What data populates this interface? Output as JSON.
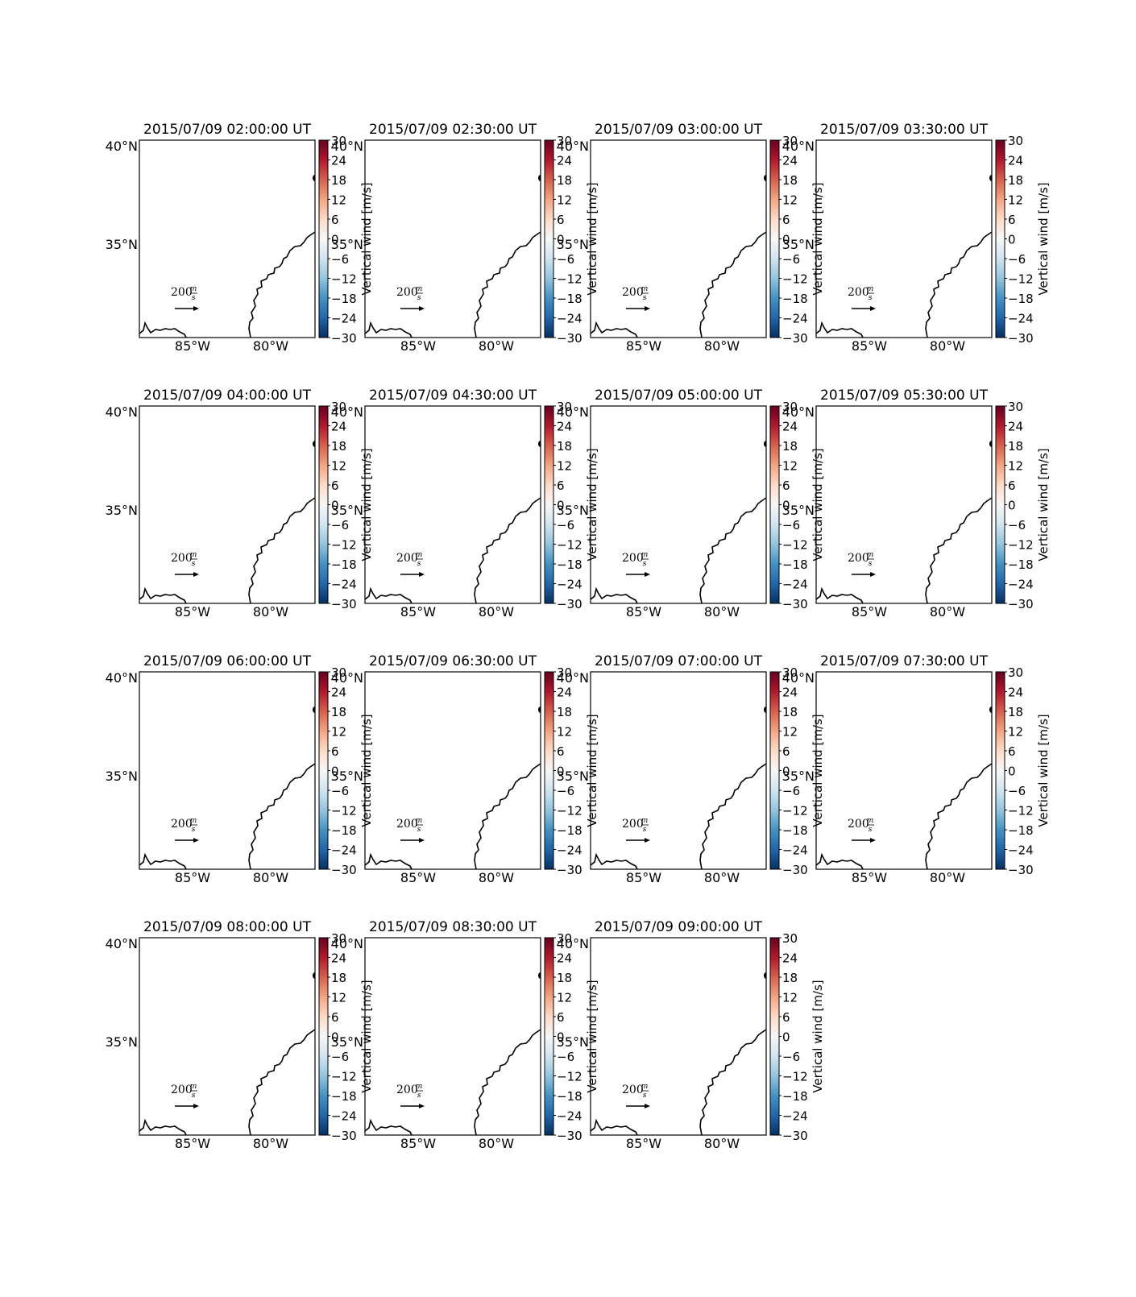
{
  "chart_data": [
    {
      "type": "map",
      "title": "2015/07/09 02:00:00 UT",
      "colorbar_label": "Vertical wind [m/s]",
      "quiver_key": "200",
      "quiver_key_unit": {
        "num": "m",
        "den": "s"
      }
    },
    {
      "type": "map",
      "title": "2015/07/09 02:30:00 UT",
      "colorbar_label": "Vertical wind [m/s]",
      "quiver_key": "200",
      "quiver_key_unit": {
        "num": "m",
        "den": "s"
      }
    },
    {
      "type": "map",
      "title": "2015/07/09 03:00:00 UT",
      "colorbar_label": "Vertical wind [m/s]",
      "quiver_key": "200",
      "quiver_key_unit": {
        "num": "m",
        "den": "s"
      }
    },
    {
      "type": "map",
      "title": "2015/07/09 03:30:00 UT",
      "colorbar_label": "Vertical wind [m/s]",
      "quiver_key": "200",
      "quiver_key_unit": {
        "num": "m",
        "den": "s"
      }
    },
    {
      "type": "map",
      "title": "2015/07/09 04:00:00 UT",
      "colorbar_label": "Vertical wind [m/s]",
      "quiver_key": "200",
      "quiver_key_unit": {
        "num": "m",
        "den": "s"
      }
    },
    {
      "type": "map",
      "title": "2015/07/09 04:30:00 UT",
      "colorbar_label": "Vertical wind [m/s]",
      "quiver_key": "200",
      "quiver_key_unit": {
        "num": "m",
        "den": "s"
      }
    },
    {
      "type": "map",
      "title": "2015/07/09 05:00:00 UT",
      "colorbar_label": "Vertical wind [m/s]",
      "quiver_key": "200",
      "quiver_key_unit": {
        "num": "m",
        "den": "s"
      }
    },
    {
      "type": "map",
      "title": "2015/07/09 05:30:00 UT",
      "colorbar_label": "Vertical wind [m/s]",
      "quiver_key": "200",
      "quiver_key_unit": {
        "num": "m",
        "den": "s"
      }
    },
    {
      "type": "map",
      "title": "2015/07/09 06:00:00 UT",
      "colorbar_label": "Vertical wind [m/s]",
      "quiver_key": "200",
      "quiver_key_unit": {
        "num": "m",
        "den": "s"
      }
    },
    {
      "type": "map",
      "title": "2015/07/09 06:30:00 UT",
      "colorbar_label": "Vertical wind [m/s]",
      "quiver_key": "200",
      "quiver_key_unit": {
        "num": "m",
        "den": "s"
      }
    },
    {
      "type": "map",
      "title": "2015/07/09 07:00:00 UT",
      "colorbar_label": "Vertical wind [m/s]",
      "quiver_key": "200",
      "quiver_key_unit": {
        "num": "m",
        "den": "s"
      }
    },
    {
      "type": "map",
      "title": "2015/07/09 07:30:00 UT",
      "colorbar_label": "Vertical wind [m/s]",
      "quiver_key": "200",
      "quiver_key_unit": {
        "num": "m",
        "den": "s"
      }
    },
    {
      "type": "map",
      "title": "2015/07/09 08:00:00 UT",
      "colorbar_label": "Vertical wind [m/s]",
      "quiver_key": "200",
      "quiver_key_unit": {
        "num": "m",
        "den": "s"
      }
    },
    {
      "type": "map",
      "title": "2015/07/09 08:30:00 UT",
      "colorbar_label": "Vertical wind [m/s]",
      "quiver_key": "200",
      "quiver_key_unit": {
        "num": "m",
        "den": "s"
      }
    },
    {
      "type": "map",
      "title": "2015/07/09 09:00:00 UT",
      "colorbar_label": "Vertical wind [m/s]",
      "quiver_key": "200",
      "quiver_key_unit": {
        "num": "m",
        "den": "s"
      }
    }
  ],
  "shared": {
    "lat_ticks": [
      "40°N",
      "35°N"
    ],
    "lon_ticks": [
      "85°W",
      "80°W"
    ],
    "colorbar_ticks": [
      "30",
      "24",
      "18",
      "12",
      "6",
      "0",
      "−6",
      "−12",
      "−18",
      "−24",
      "−30"
    ],
    "colorbar_range": [
      -30,
      30
    ],
    "colormap": [
      "#67001f",
      "#b2182b",
      "#d6604d",
      "#f4a582",
      "#fddbc7",
      "#f7f7f7",
      "#d1e5f0",
      "#92c5de",
      "#4393c3",
      "#2166ac",
      "#053061"
    ],
    "grid": false
  }
}
